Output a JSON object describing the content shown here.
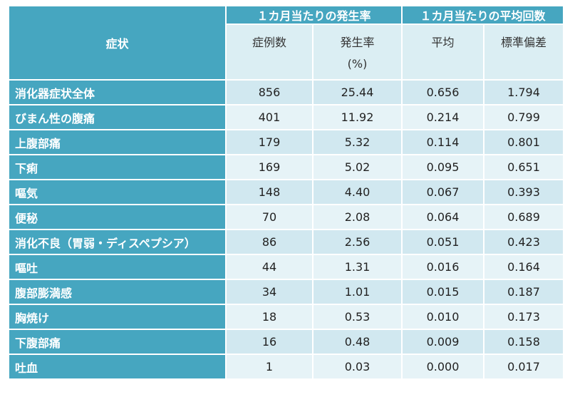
{
  "header": {
    "symptom": "症状",
    "group_rate": "１カ月当たりの発生率",
    "group_avg": "１カ月当たりの平均回数",
    "cases": "症例数",
    "rate": "発生率",
    "rate_unit": "(%)",
    "mean": "平均",
    "sd": "標準偏差"
  },
  "rows": [
    {
      "symptom": "消化器症状全体",
      "cases": "856",
      "rate": "25.44",
      "mean": "0.656",
      "sd": "1.794"
    },
    {
      "symptom": "びまん性の腹痛",
      "cases": "401",
      "rate": "11.92",
      "mean": "0.214",
      "sd": "0.799"
    },
    {
      "symptom": "上腹部痛",
      "cases": "179",
      "rate": "5.32",
      "mean": "0.114",
      "sd": "0.801"
    },
    {
      "symptom": "下痢",
      "cases": "169",
      "rate": "5.02",
      "mean": "0.095",
      "sd": "0.651"
    },
    {
      "symptom": "嘔気",
      "cases": "148",
      "rate": "4.40",
      "mean": "0.067",
      "sd": "0.393"
    },
    {
      "symptom": "便秘",
      "cases": "70",
      "rate": "2.08",
      "mean": "0.064",
      "sd": "0.689"
    },
    {
      "symptom": "消化不良（胃弱・ディスペプシア）",
      "cases": "86",
      "rate": "2.56",
      "mean": "0.051",
      "sd": "0.423"
    },
    {
      "symptom": "嘔吐",
      "cases": "44",
      "rate": "1.31",
      "mean": "0.016",
      "sd": "0.164"
    },
    {
      "symptom": "腹部膨満感",
      "cases": "34",
      "rate": "1.01",
      "mean": "0.015",
      "sd": "0.187"
    },
    {
      "symptom": "胸焼け",
      "cases": "18",
      "rate": "0.53",
      "mean": "0.010",
      "sd": "0.173"
    },
    {
      "symptom": "下腹部痛",
      "cases": "16",
      "rate": "0.48",
      "mean": "0.009",
      "sd": "0.158"
    },
    {
      "symptom": "吐血",
      "cases": "1",
      "rate": "0.03",
      "mean": "0.000",
      "sd": "0.017"
    }
  ]
}
